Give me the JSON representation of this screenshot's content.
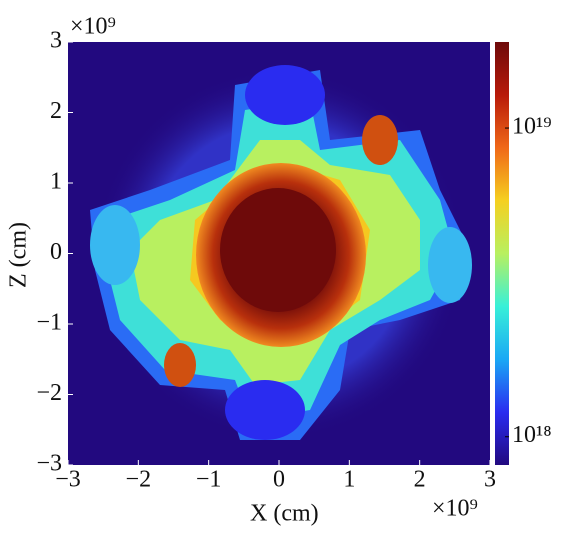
{
  "chart_data": {
    "type": "heatmap",
    "xlabel": "X (cm)",
    "ylabel": "Z (cm)",
    "x_multiplier": "×10⁹",
    "y_multiplier": "×10⁹",
    "xlim": [
      -3,
      3
    ],
    "ylim": [
      -3,
      3
    ],
    "xticks": [
      {
        "value": -3,
        "label": "−3"
      },
      {
        "value": -2,
        "label": "−2"
      },
      {
        "value": -1,
        "label": "−1"
      },
      0,
      1,
      2,
      3
    ],
    "yticks": [
      {
        "value": -3,
        "label": "−3"
      },
      {
        "value": -2,
        "label": "−2"
      },
      {
        "value": -1,
        "label": "−1"
      },
      0,
      1,
      2,
      3
    ],
    "grid": false,
    "colorbar": {
      "scale": "log",
      "lim": [
        8.1e+17,
        1.9e+19
      ],
      "ticks": [
        {
          "value": 1e+18,
          "label": "10¹⁸"
        },
        {
          "value": 1e+19,
          "label": "10¹⁹"
        }
      ],
      "colors": [
        "#22097f",
        "#2a2cf0",
        "#1aa8f5",
        "#38f0d8",
        "#b8f060",
        "#f5d020",
        "#f06818",
        "#b81a0a",
        "#6e0a0a"
      ]
    }
  }
}
